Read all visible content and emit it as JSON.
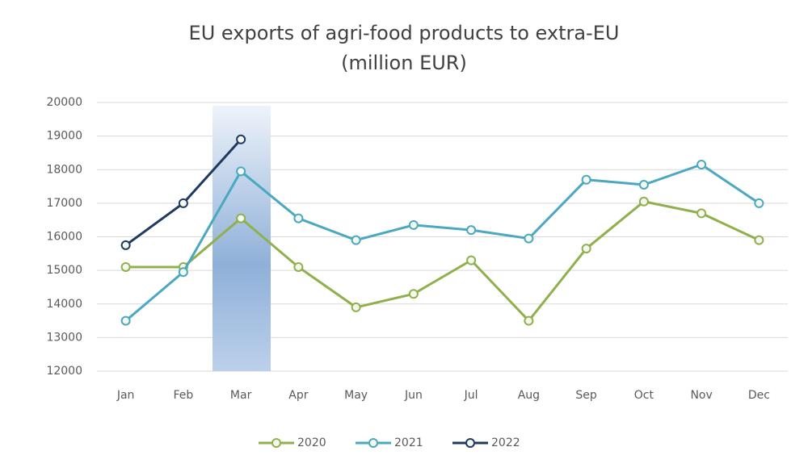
{
  "chart_data": {
    "type": "line",
    "title": "EU exports of agri-food products to extra-EU",
    "subtitle": "(million EUR)",
    "categories": [
      "Jan",
      "Feb",
      "Mar",
      "Apr",
      "May",
      "Jun",
      "Jul",
      "Aug",
      "Sep",
      "Oct",
      "Nov",
      "Dec"
    ],
    "series": [
      {
        "name": "2020",
        "color": "#8fb04c",
        "values": [
          15100,
          15100,
          16550,
          15100,
          13900,
          14300,
          15300,
          13500,
          15650,
          17050,
          16700,
          15900
        ]
      },
      {
        "name": "2021",
        "color": "#4aa8c0",
        "values": [
          13500,
          14950,
          17950,
          16550,
          15900,
          16350,
          16200,
          15950,
          17700,
          17550,
          18150,
          17000
        ]
      },
      {
        "name": "2022",
        "color": "#1f3a60",
        "values": [
          15750,
          17000,
          18900,
          null,
          null,
          null,
          null,
          null,
          null,
          null,
          null,
          null
        ]
      }
    ],
    "ylim": [
      12000,
      20000
    ],
    "yticks": [
      12000,
      13000,
      14000,
      15000,
      16000,
      17000,
      18000,
      19000,
      20000
    ],
    "grid": true,
    "legend": "bottom"
  }
}
